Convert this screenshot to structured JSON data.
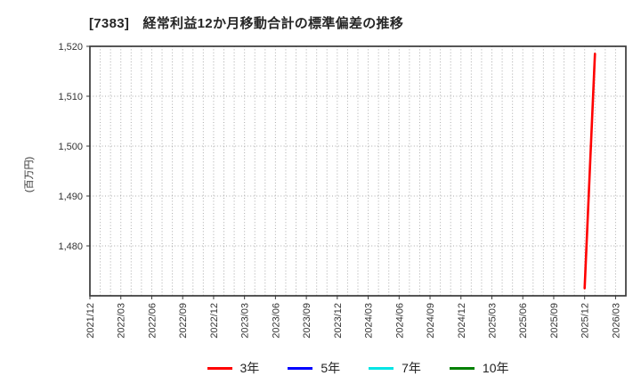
{
  "chart_data": {
    "type": "line",
    "title": "[7383]　経常利益12か月移動合計の標準偏差の推移",
    "ylabel": "(百万円)",
    "ylim": [
      1470,
      1520
    ],
    "y_ticks": [
      {
        "value": 1480,
        "label": "1,480"
      },
      {
        "value": 1490,
        "label": "1,490"
      },
      {
        "value": 1500,
        "label": "1,500"
      },
      {
        "value": 1510,
        "label": "1,510"
      },
      {
        "value": 1520,
        "label": "1,520"
      }
    ],
    "x_axis_start": "2021/12",
    "x_axis_end_edge": "2026/04",
    "x_tick_labels": [
      "2021/12",
      "2022/03",
      "2022/06",
      "2022/09",
      "2022/12",
      "2023/03",
      "2023/06",
      "2023/09",
      "2023/12",
      "2024/03",
      "2024/06",
      "2024/09",
      "2024/12",
      "2025/03",
      "2025/06",
      "2025/09",
      "2025/12",
      "2026/03"
    ],
    "grid": {
      "vertical": "monthly-dotted",
      "horizontal": "dotted-at-y-ticks"
    },
    "legend_position": "bottom-center",
    "series": [
      {
        "name": "3年",
        "color": "#ff0000",
        "points": [
          [
            "2025/12",
            1471.5
          ],
          [
            "2026/01",
            1518.5
          ]
        ]
      },
      {
        "name": "5年",
        "color": "#0000ff",
        "points": []
      },
      {
        "name": "7年",
        "color": "#00e5e5",
        "points": []
      },
      {
        "name": "10年",
        "color": "#008000",
        "points": []
      }
    ]
  }
}
